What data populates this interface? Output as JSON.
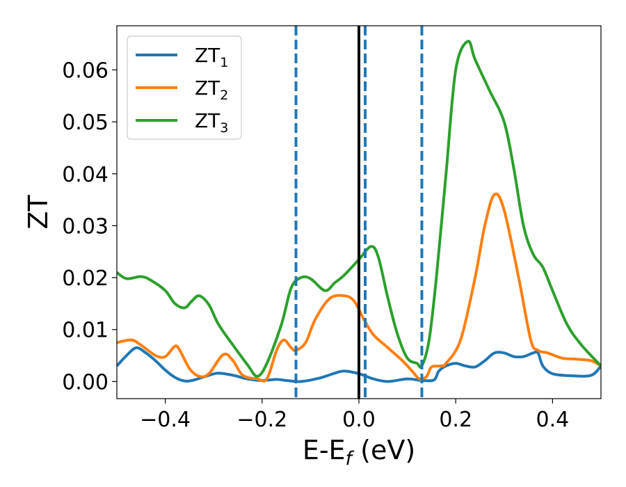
{
  "chart_data": {
    "type": "line",
    "title": "",
    "xlabel": "E-E",
    "xlabel_subscript": "f",
    "xlabel_unit": " (eV)",
    "ylabel": "ZT",
    "xlim": [
      -0.5,
      0.5
    ],
    "ylim": [
      -0.0033,
      0.0685
    ],
    "grid": false,
    "legend_position": "top-left",
    "x_ticks": [
      -0.4,
      -0.2,
      0.0,
      0.2,
      0.4
    ],
    "x_tick_labels": [
      "−0.4",
      "−0.2",
      "0.0",
      "0.2",
      "0.4"
    ],
    "y_ticks": [
      0.0,
      0.01,
      0.02,
      0.03,
      0.04,
      0.05,
      0.06
    ],
    "y_tick_labels": [
      "0.00",
      "0.01",
      "0.02",
      "0.03",
      "0.04",
      "0.05",
      "0.06"
    ],
    "reference_lines": [
      {
        "x": 0.0,
        "style": "solid",
        "color": "#000000"
      },
      {
        "x": -0.13,
        "style": "dashed",
        "color": "#1f77b4"
      },
      {
        "x": 0.013,
        "style": "dashed",
        "color": "#1f77b4"
      },
      {
        "x": 0.13,
        "style": "dashed",
        "color": "#1f77b4"
      }
    ],
    "series": [
      {
        "name": "ZT",
        "name_subscript": "1",
        "color": "#1f77b4",
        "points": [
          [
            -0.5,
            0.003
          ],
          [
            -0.48,
            0.005
          ],
          [
            -0.46,
            0.0065
          ],
          [
            -0.44,
            0.0055
          ],
          [
            -0.42,
            0.004
          ],
          [
            -0.4,
            0.0022
          ],
          [
            -0.38,
            0.0008
          ],
          [
            -0.36,
            0.0001
          ],
          [
            -0.34,
            0.0003
          ],
          [
            -0.31,
            0.0012
          ],
          [
            -0.29,
            0.0016
          ],
          [
            -0.26,
            0.0012
          ],
          [
            -0.23,
            0.0005
          ],
          [
            -0.2,
            0.0002
          ],
          [
            -0.17,
            0.0004
          ],
          [
            -0.15,
            0.0002
          ],
          [
            -0.12,
            0.0
          ],
          [
            -0.08,
            0.0007
          ],
          [
            -0.05,
            0.0016
          ],
          [
            -0.03,
            0.002
          ],
          [
            0.0,
            0.0015
          ],
          [
            0.03,
            0.0005
          ],
          [
            0.06,
            0.0
          ],
          [
            0.1,
            0.0005
          ],
          [
            0.13,
            0.0002
          ],
          [
            0.155,
            0.0003
          ],
          [
            0.165,
            0.002
          ],
          [
            0.18,
            0.003
          ],
          [
            0.2,
            0.0035
          ],
          [
            0.22,
            0.003
          ],
          [
            0.24,
            0.0028
          ],
          [
            0.26,
            0.004
          ],
          [
            0.28,
            0.0055
          ],
          [
            0.3,
            0.0055
          ],
          [
            0.32,
            0.0048
          ],
          [
            0.34,
            0.0048
          ],
          [
            0.36,
            0.0055
          ],
          [
            0.37,
            0.0055
          ],
          [
            0.38,
            0.003
          ],
          [
            0.4,
            0.0015
          ],
          [
            0.44,
            0.0011
          ],
          [
            0.48,
            0.0012
          ],
          [
            0.5,
            0.003
          ]
        ]
      },
      {
        "name": "ZT",
        "name_subscript": "2",
        "color": "#ff7f0e",
        "points": [
          [
            -0.5,
            0.0075
          ],
          [
            -0.47,
            0.008
          ],
          [
            -0.45,
            0.007
          ],
          [
            -0.42,
            0.005
          ],
          [
            -0.4,
            0.0048
          ],
          [
            -0.38,
            0.0068
          ],
          [
            -0.37,
            0.006
          ],
          [
            -0.35,
            0.0025
          ],
          [
            -0.33,
            0.001
          ],
          [
            -0.31,
            0.0015
          ],
          [
            -0.28,
            0.0052
          ],
          [
            -0.26,
            0.004
          ],
          [
            -0.24,
            0.0012
          ],
          [
            -0.21,
            0.0005
          ],
          [
            -0.19,
            0.0005
          ],
          [
            -0.17,
            0.006
          ],
          [
            -0.155,
            0.008
          ],
          [
            -0.14,
            0.0065
          ],
          [
            -0.13,
            0.006
          ],
          [
            -0.11,
            0.0075
          ],
          [
            -0.09,
            0.012
          ],
          [
            -0.06,
            0.016
          ],
          [
            -0.03,
            0.0165
          ],
          [
            -0.01,
            0.0155
          ],
          [
            0.01,
            0.012
          ],
          [
            0.03,
            0.009
          ],
          [
            0.06,
            0.0065
          ],
          [
            0.09,
            0.004
          ],
          [
            0.11,
            0.002
          ],
          [
            0.125,
            0.0005
          ],
          [
            0.14,
            0.001
          ],
          [
            0.15,
            0.0028
          ],
          [
            0.17,
            0.003
          ],
          [
            0.18,
            0.0035
          ],
          [
            0.21,
            0.008
          ],
          [
            0.24,
            0.02
          ],
          [
            0.26,
            0.03
          ],
          [
            0.28,
            0.036
          ],
          [
            0.3,
            0.033
          ],
          [
            0.33,
            0.02
          ],
          [
            0.355,
            0.008
          ],
          [
            0.37,
            0.006
          ],
          [
            0.39,
            0.0055
          ],
          [
            0.42,
            0.0045
          ],
          [
            0.45,
            0.0043
          ],
          [
            0.48,
            0.004
          ],
          [
            0.5,
            0.003
          ]
        ]
      },
      {
        "name": "ZT",
        "name_subscript": "3",
        "color": "#2ca02c",
        "points": [
          [
            -0.5,
            0.021
          ],
          [
            -0.48,
            0.0198
          ],
          [
            -0.45,
            0.0202
          ],
          [
            -0.43,
            0.0195
          ],
          [
            -0.4,
            0.0175
          ],
          [
            -0.38,
            0.015
          ],
          [
            -0.36,
            0.0142
          ],
          [
            -0.345,
            0.0155
          ],
          [
            -0.33,
            0.0165
          ],
          [
            -0.31,
            0.0148
          ],
          [
            -0.29,
            0.011
          ],
          [
            -0.26,
            0.007
          ],
          [
            -0.23,
            0.0032
          ],
          [
            -0.21,
            0.001
          ],
          [
            -0.19,
            0.0035
          ],
          [
            -0.16,
            0.011
          ],
          [
            -0.14,
            0.018
          ],
          [
            -0.12,
            0.02
          ],
          [
            -0.1,
            0.0198
          ],
          [
            -0.07,
            0.0175
          ],
          [
            -0.05,
            0.019
          ],
          [
            -0.03,
            0.0205
          ],
          [
            0.0,
            0.0235
          ],
          [
            0.025,
            0.026
          ],
          [
            0.04,
            0.024
          ],
          [
            0.06,
            0.016
          ],
          [
            0.08,
            0.009
          ],
          [
            0.1,
            0.0045
          ],
          [
            0.12,
            0.0035
          ],
          [
            0.13,
            0.003
          ],
          [
            0.145,
            0.008
          ],
          [
            0.16,
            0.02
          ],
          [
            0.18,
            0.04
          ],
          [
            0.2,
            0.06
          ],
          [
            0.225,
            0.0655
          ],
          [
            0.24,
            0.062
          ],
          [
            0.27,
            0.056
          ],
          [
            0.3,
            0.05
          ],
          [
            0.32,
            0.041
          ],
          [
            0.34,
            0.03
          ],
          [
            0.36,
            0.0245
          ],
          [
            0.38,
            0.022
          ],
          [
            0.4,
            0.0175
          ],
          [
            0.43,
            0.011
          ],
          [
            0.46,
            0.007
          ],
          [
            0.5,
            0.003
          ]
        ]
      }
    ]
  }
}
